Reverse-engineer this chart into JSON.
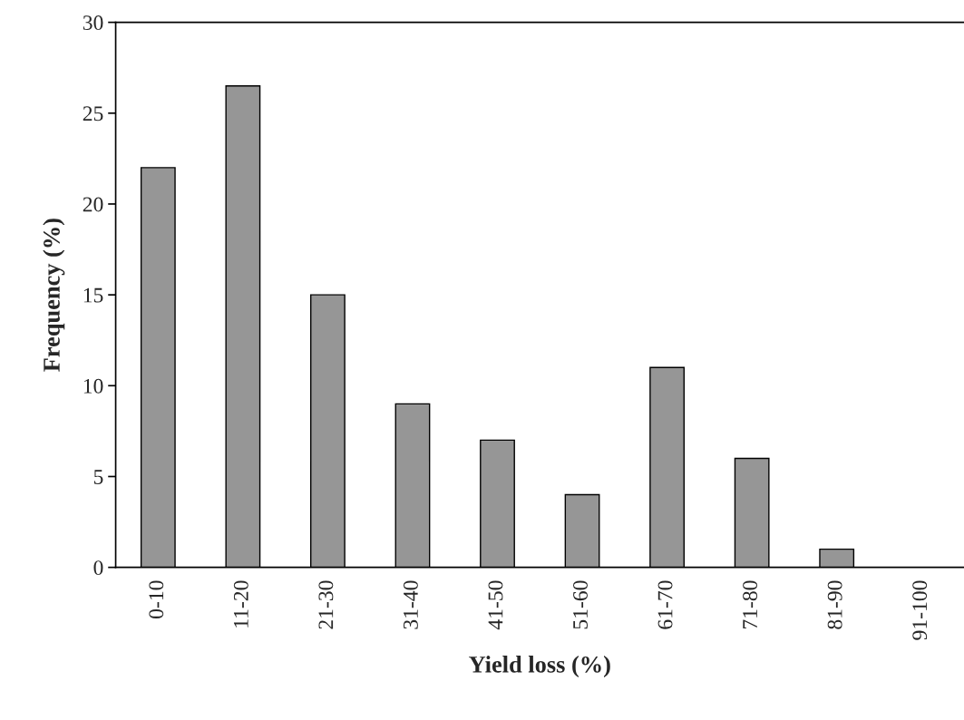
{
  "chart_data": {
    "type": "bar",
    "xlabel": "Yield loss (%)",
    "ylabel": "Frequency (%)",
    "categories": [
      "0-10",
      "11-20",
      "21-30",
      "31-40",
      "41-50",
      "51-60",
      "61-70",
      "71-80",
      "81-90",
      "91-100"
    ],
    "values": [
      22,
      26.5,
      15,
      9,
      7,
      4,
      11,
      6,
      1,
      0
    ],
    "color": "#969696",
    "ylim": [
      0,
      30
    ],
    "yticks": [
      0,
      5,
      10,
      15,
      20,
      25,
      30
    ],
    "grid": false,
    "legend": false
  }
}
